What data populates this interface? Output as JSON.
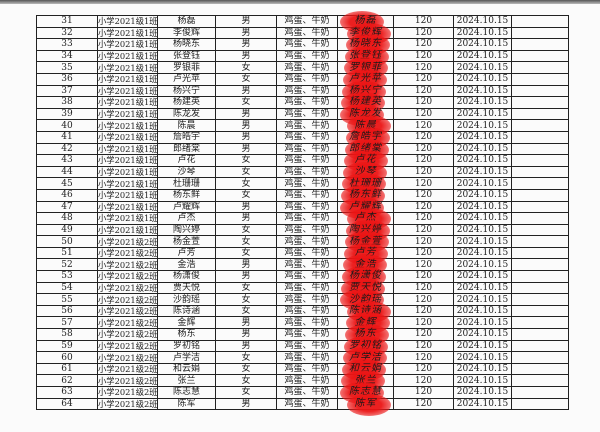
{
  "stamp_color": "#eb1414",
  "rows": [
    {
      "no": "31",
      "class": "小学2021级1班",
      "name": "杨磊",
      "gender": "男",
      "food": "鸡蛋、牛奶",
      "amount": "120",
      "date": "2024.10.15"
    },
    {
      "no": "32",
      "class": "小学2021级1班",
      "name": "李俊辉",
      "gender": "男",
      "food": "鸡蛋、牛奶",
      "amount": "120",
      "date": "2024.10.15"
    },
    {
      "no": "33",
      "class": "小学2021级1班",
      "name": "杨晓东",
      "gender": "男",
      "food": "鸡蛋、牛奶",
      "amount": "120",
      "date": "2024.10.15"
    },
    {
      "no": "34",
      "class": "小学2021级1班",
      "name": "张登钰",
      "gender": "男",
      "food": "鸡蛋、牛奶",
      "amount": "120",
      "date": "2024.10.15"
    },
    {
      "no": "35",
      "class": "小学2021级1班",
      "name": "罗银菲",
      "gender": "女",
      "food": "鸡蛋、牛奶",
      "amount": "120",
      "date": "2024.10.15"
    },
    {
      "no": "36",
      "class": "小学2021级1班",
      "name": "卢光苹",
      "gender": "女",
      "food": "鸡蛋、牛奶",
      "amount": "120",
      "date": "2024.10.15"
    },
    {
      "no": "37",
      "class": "小学2021级1班",
      "name": "杨兴宁",
      "gender": "男",
      "food": "鸡蛋、牛奶",
      "amount": "120",
      "date": "2024.10.15"
    },
    {
      "no": "38",
      "class": "小学2021级1班",
      "name": "杨建英",
      "gender": "女",
      "food": "鸡蛋、牛奶",
      "amount": "120",
      "date": "2024.10.15"
    },
    {
      "no": "39",
      "class": "小学2021级1班",
      "name": "陈龙发",
      "gender": "男",
      "food": "鸡蛋、牛奶",
      "amount": "120",
      "date": "2024.10.15"
    },
    {
      "no": "40",
      "class": "小学2021级1班",
      "name": "陈晨",
      "gender": "男",
      "food": "鸡蛋、牛奶",
      "amount": "120",
      "date": "2024.10.15"
    },
    {
      "no": "41",
      "class": "小学2021级1班",
      "name": "詹皓宇",
      "gender": "男",
      "food": "鸡蛋、牛奶",
      "amount": "120",
      "date": "2024.10.15"
    },
    {
      "no": "42",
      "class": "小学2021级1班",
      "name": "郎绪棠",
      "gender": "男",
      "food": "鸡蛋、牛奶",
      "amount": "120",
      "date": "2024.10.15"
    },
    {
      "no": "43",
      "class": "小学2021级1班",
      "name": "卢花",
      "gender": "女",
      "food": "鸡蛋、牛奶",
      "amount": "120",
      "date": "2024.10.15"
    },
    {
      "no": "44",
      "class": "小学2021级1班",
      "name": "沙琴",
      "gender": "女",
      "food": "鸡蛋、牛奶",
      "amount": "120",
      "date": "2024.10.15"
    },
    {
      "no": "45",
      "class": "小学2021级1班",
      "name": "杜珊珊",
      "gender": "女",
      "food": "鸡蛋、牛奶",
      "amount": "120",
      "date": "2024.10.15"
    },
    {
      "no": "46",
      "class": "小学2021级1班",
      "name": "杨东鲜",
      "gender": "女",
      "food": "鸡蛋、牛奶",
      "amount": "120",
      "date": "2024.10.15"
    },
    {
      "no": "47",
      "class": "小学2021级1班",
      "name": "卢耀辉",
      "gender": "男",
      "food": "鸡蛋、牛奶",
      "amount": "120",
      "date": "2024.10.15"
    },
    {
      "no": "48",
      "class": "小学2021级1班",
      "name": "卢杰",
      "gender": "男",
      "food": "鸡蛋、牛奶",
      "amount": "120",
      "date": "2024.10.15"
    },
    {
      "no": "49",
      "class": "小学2021级1班",
      "name": "陶兴婷",
      "gender": "女",
      "food": "鸡蛋、牛奶",
      "amount": "120",
      "date": "2024.10.15"
    },
    {
      "no": "50",
      "class": "小学2021级2班",
      "name": "杨金萱",
      "gender": "女",
      "food": "鸡蛋、牛奶",
      "amount": "120",
      "date": "2024.10.15"
    },
    {
      "no": "51",
      "class": "小学2021级2班",
      "name": "卢芳",
      "gender": "女",
      "food": "鸡蛋、牛奶",
      "amount": "120",
      "date": "2024.10.15"
    },
    {
      "no": "52",
      "class": "小学2021级2班",
      "name": "金浩",
      "gender": "男",
      "food": "鸡蛋、牛奶",
      "amount": "120",
      "date": "2024.10.15"
    },
    {
      "no": "53",
      "class": "小学2021级2班",
      "name": "杨潇俊",
      "gender": "男",
      "food": "鸡蛋、牛奶",
      "amount": "120",
      "date": "2024.10.15"
    },
    {
      "no": "54",
      "class": "小学2021级2班",
      "name": "贾天悦",
      "gender": "女",
      "food": "鸡蛋、牛奶",
      "amount": "120",
      "date": "2024.10.15"
    },
    {
      "no": "55",
      "class": "小学2021级2班",
      "name": "沙韵瑶",
      "gender": "女",
      "food": "鸡蛋、牛奶",
      "amount": "120",
      "date": "2024.10.15"
    },
    {
      "no": "56",
      "class": "小学2021级2班",
      "name": "陈诗涵",
      "gender": "女",
      "food": "鸡蛋、牛奶",
      "amount": "120",
      "date": "2024.10.15"
    },
    {
      "no": "57",
      "class": "小学2021级2班",
      "name": "金辉",
      "gender": "男",
      "food": "鸡蛋、牛奶",
      "amount": "120",
      "date": "2024.10.15"
    },
    {
      "no": "58",
      "class": "小学2021级2班",
      "name": "杨东",
      "gender": "男",
      "food": "鸡蛋、牛奶",
      "amount": "120",
      "date": "2024.10.15"
    },
    {
      "no": "59",
      "class": "小学2021级2班",
      "name": "罗初铭",
      "gender": "男",
      "food": "鸡蛋、牛奶",
      "amount": "120",
      "date": "2024.10.15"
    },
    {
      "no": "60",
      "class": "小学2021级2班",
      "name": "卢学洁",
      "gender": "女",
      "food": "鸡蛋、牛奶",
      "amount": "120",
      "date": "2024.10.15"
    },
    {
      "no": "61",
      "class": "小学2021级2班",
      "name": "和云娟",
      "gender": "女",
      "food": "鸡蛋、牛奶",
      "amount": "120",
      "date": "2024.10.15"
    },
    {
      "no": "62",
      "class": "小学2021级2班",
      "name": "张兰",
      "gender": "女",
      "food": "鸡蛋、牛奶",
      "amount": "120",
      "date": "2024.10.15"
    },
    {
      "no": "63",
      "class": "小学2021级2班",
      "name": "陈志慧",
      "gender": "女",
      "food": "鸡蛋、牛奶",
      "amount": "120",
      "date": "2024.10.15"
    },
    {
      "no": "64",
      "class": "小学2021级2班",
      "name": "陈军",
      "gender": "男",
      "food": "鸡蛋、牛奶",
      "amount": "120",
      "date": "2024.10.15"
    }
  ]
}
